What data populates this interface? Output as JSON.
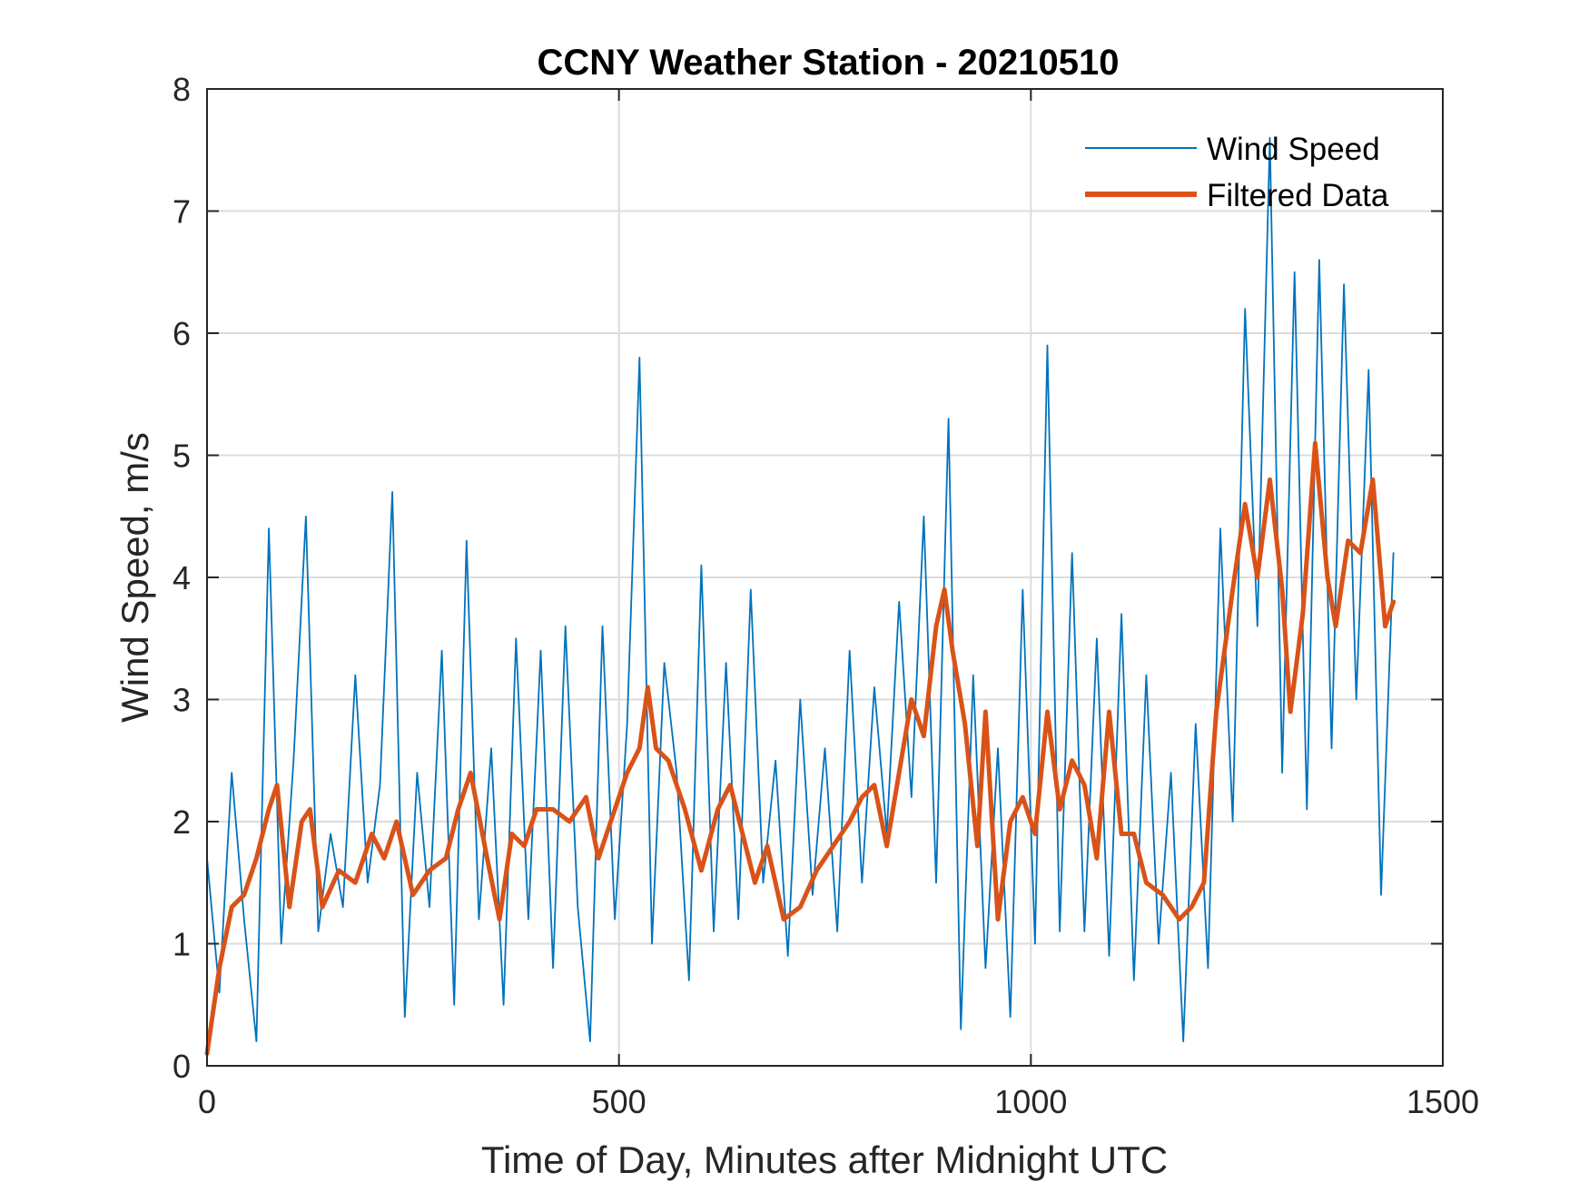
{
  "chart_data": {
    "type": "line",
    "title": "CCNY Weather Station - 20210510",
    "xlabel": "Time of Day, Minutes after Midnight UTC",
    "ylabel": "Wind Speed, m/s",
    "xlim": [
      0,
      1500
    ],
    "ylim": [
      0,
      8
    ],
    "xticks": [
      0,
      500,
      1000,
      1500
    ],
    "yticks": [
      0,
      1,
      2,
      3,
      4,
      5,
      6,
      7,
      8
    ],
    "grid": true,
    "legend_position": "top-right",
    "colors": {
      "raw": "#0072BD",
      "filtered": "#D95319",
      "grid": "#dcdcdc",
      "axis": "#262626"
    },
    "series": [
      {
        "name": "Wind Speed",
        "style": "thin",
        "x": [
          0,
          15,
          30,
          45,
          60,
          75,
          90,
          105,
          120,
          135,
          150,
          165,
          180,
          195,
          210,
          225,
          240,
          255,
          270,
          285,
          300,
          315,
          330,
          345,
          360,
          375,
          390,
          405,
          420,
          435,
          450,
          465,
          480,
          495,
          510,
          525,
          540,
          555,
          570,
          585,
          600,
          615,
          630,
          645,
          660,
          675,
          690,
          705,
          720,
          735,
          750,
          765,
          780,
          795,
          810,
          825,
          840,
          855,
          870,
          885,
          900,
          915,
          930,
          945,
          960,
          975,
          990,
          1005,
          1020,
          1035,
          1050,
          1065,
          1080,
          1095,
          1110,
          1125,
          1140,
          1155,
          1170,
          1185,
          1200,
          1215,
          1230,
          1245,
          1260,
          1275,
          1290,
          1305,
          1320,
          1335,
          1350,
          1365,
          1380,
          1395,
          1410,
          1425,
          1440
        ],
        "y": [
          1.7,
          0.6,
          2.4,
          1.2,
          0.2,
          4.4,
          1.0,
          2.5,
          4.5,
          1.1,
          1.9,
          1.3,
          3.2,
          1.5,
          2.3,
          4.7,
          0.4,
          2.4,
          1.3,
          3.4,
          0.5,
          4.3,
          1.2,
          2.6,
          0.5,
          3.5,
          1.2,
          3.4,
          0.8,
          3.6,
          1.3,
          0.2,
          3.6,
          1.2,
          2.8,
          5.8,
          1.0,
          3.3,
          2.4,
          0.7,
          4.1,
          1.1,
          3.3,
          1.2,
          3.9,
          1.5,
          2.5,
          0.9,
          3.0,
          1.4,
          2.6,
          1.1,
          3.4,
          1.5,
          3.1,
          1.9,
          3.8,
          2.2,
          4.5,
          1.5,
          5.3,
          0.3,
          3.2,
          0.8,
          2.6,
          0.4,
          3.9,
          1.0,
          5.9,
          1.1,
          4.2,
          1.1,
          3.5,
          0.9,
          3.7,
          0.7,
          3.2,
          1.0,
          2.4,
          0.2,
          2.8,
          0.8,
          4.4,
          2.0,
          6.2,
          3.6,
          7.6,
          2.4,
          6.5,
          2.1,
          6.6,
          2.6,
          6.4,
          3.0,
          5.7,
          1.4,
          4.2
        ]
      },
      {
        "name": "Filtered Data",
        "style": "thick",
        "x": [
          0,
          15,
          30,
          45,
          60,
          75,
          85,
          100,
          115,
          125,
          140,
          160,
          180,
          200,
          215,
          230,
          250,
          270,
          290,
          305,
          320,
          340,
          355,
          370,
          385,
          400,
          420,
          440,
          460,
          475,
          490,
          510,
          525,
          535,
          545,
          560,
          580,
          600,
          620,
          635,
          650,
          665,
          680,
          700,
          720,
          740,
          760,
          780,
          795,
          810,
          825,
          840,
          855,
          870,
          885,
          895,
          905,
          920,
          935,
          945,
          960,
          975,
          990,
          1005,
          1020,
          1035,
          1050,
          1065,
          1080,
          1095,
          1110,
          1125,
          1140,
          1160,
          1180,
          1195,
          1210,
          1225,
          1245,
          1260,
          1275,
          1290,
          1305,
          1315,
          1330,
          1345,
          1360,
          1370,
          1385,
          1400,
          1415,
          1430,
          1440
        ],
        "y": [
          0.1,
          0.8,
          1.3,
          1.4,
          1.7,
          2.1,
          2.3,
          1.3,
          2.0,
          2.1,
          1.3,
          1.6,
          1.5,
          1.9,
          1.7,
          2.0,
          1.4,
          1.6,
          1.7,
          2.1,
          2.4,
          1.7,
          1.2,
          1.9,
          1.8,
          2.1,
          2.1,
          2.0,
          2.2,
          1.7,
          2.0,
          2.4,
          2.6,
          3.1,
          2.6,
          2.5,
          2.1,
          1.6,
          2.1,
          2.3,
          1.9,
          1.5,
          1.8,
          1.2,
          1.3,
          1.6,
          1.8,
          2.0,
          2.2,
          2.3,
          1.8,
          2.4,
          3.0,
          2.7,
          3.6,
          3.9,
          3.4,
          2.8,
          1.8,
          2.9,
          1.2,
          2.0,
          2.2,
          1.9,
          2.9,
          2.1,
          2.5,
          2.3,
          1.7,
          2.9,
          1.9,
          1.9,
          1.5,
          1.4,
          1.2,
          1.3,
          1.5,
          2.9,
          3.9,
          4.6,
          4.0,
          4.8,
          3.9,
          2.9,
          3.7,
          5.1,
          4.0,
          3.6,
          4.3,
          4.2,
          4.8,
          3.6,
          3.8
        ]
      }
    ]
  }
}
